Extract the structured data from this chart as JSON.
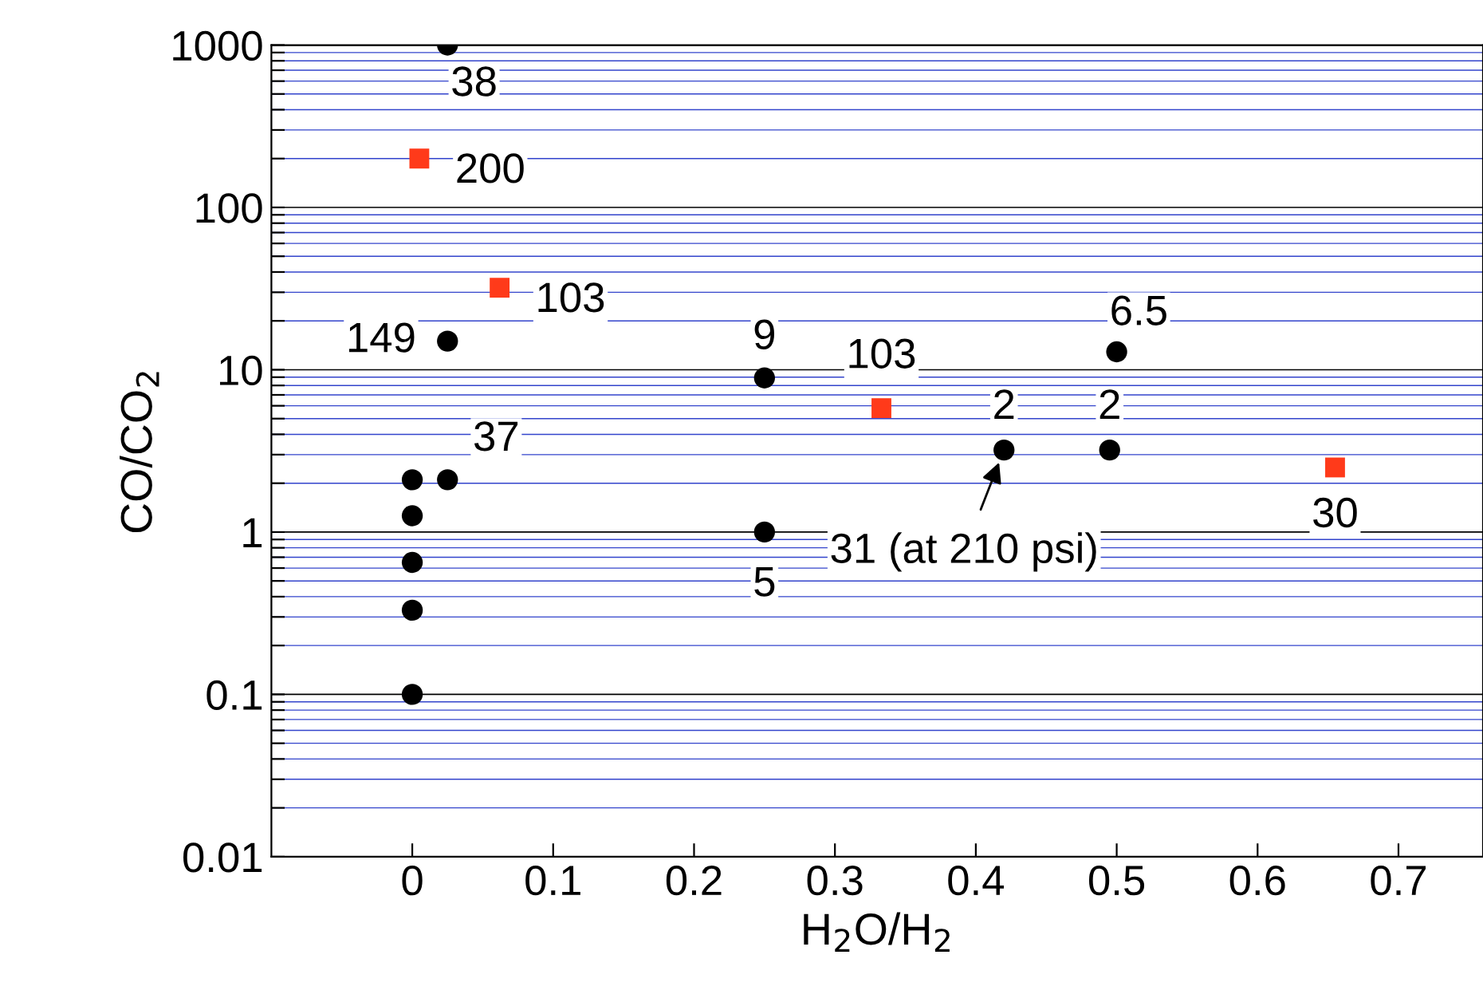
{
  "chart_data": {
    "type": "scatter",
    "xlabel": "H$_{2}$O/H$_{2}$",
    "ylabel": "CO/CO$_{2}$",
    "log": "y",
    "grid": "y",
    "xlim": [
      -0.1,
      0.76
    ],
    "xticks": [
      0,
      0.1,
      0.2,
      0.3,
      0.4,
      0.5,
      0.6,
      0.7
    ],
    "ylim": [
      0.01,
      1000
    ],
    "yticks": [
      0.01,
      {
        "value": 0.02,
        "label": null
      },
      {
        "value": 0.03,
        "label": null
      },
      {
        "value": 0.04,
        "label": null
      },
      {
        "value": 0.05,
        "label": null
      },
      {
        "value": 0.06,
        "label": null
      },
      {
        "value": 0.07,
        "label": null
      },
      {
        "value": 0.08,
        "label": null
      },
      {
        "value": 0.09,
        "label": null
      },
      0.1,
      {
        "value": 0.2,
        "label": null
      },
      {
        "value": 0.3,
        "label": null
      },
      {
        "value": 0.4,
        "label": null
      },
      {
        "value": 0.5,
        "label": null
      },
      {
        "value": 0.6,
        "label": null
      },
      {
        "value": 0.7,
        "label": null
      },
      {
        "value": 0.8,
        "label": null
      },
      {
        "value": 0.9,
        "label": null
      },
      1,
      {
        "value": 2,
        "label": null
      },
      {
        "value": 3,
        "label": null
      },
      {
        "value": 4,
        "label": null
      },
      {
        "value": 5,
        "label": null
      },
      {
        "value": 6,
        "label": null
      },
      {
        "value": 7,
        "label": null
      },
      {
        "value": 8,
        "label": null
      },
      {
        "value": 9,
        "label": null
      },
      10,
      {
        "value": 20,
        "label": null
      },
      {
        "value": 30,
        "label": null
      },
      {
        "value": 40,
        "label": null
      },
      {
        "value": 50,
        "label": null
      },
      {
        "value": 60,
        "label": null
      },
      {
        "value": 70,
        "label": null
      },
      {
        "value": 80,
        "label": null
      },
      {
        "value": 90,
        "label": null
      },
      100,
      {
        "value": 200,
        "label": null
      },
      {
        "value": 300,
        "label": null
      },
      {
        "value": 400,
        "label": null
      },
      {
        "value": 500,
        "label": null
      },
      {
        "value": 600,
        "label": null
      },
      {
        "value": 700,
        "label": null
      },
      {
        "value": 800,
        "label": null
      },
      {
        "value": 900,
        "label": null
      },
      1000
    ],
    "series": [
      {
        "color": "#000000",
        "marker": "circle",
        "x": [
          0.025,
          0.025,
          0.025,
          0,
          0,
          0,
          0,
          0,
          0.25,
          0.25,
          0.42,
          0.495,
          0.5
        ],
        "values": [
          1000,
          15,
          2.1,
          2.1,
          1.26,
          0.65,
          0.33,
          0.1,
          8.9,
          1.0,
          3.2,
          3.2,
          12.9
        ]
      },
      {
        "color": "#ff3a1a",
        "marker": "square",
        "x": [
          0.005,
          0.062,
          0.333,
          0.655
        ],
        "values": [
          200,
          32,
          5.8,
          2.5
        ]
      }
    ],
    "annotations": [
      {
        "text": "38",
        "x": 0.025,
        "y": 1000
      },
      {
        "text": "149",
        "x": 0.025,
        "y": 15
      },
      {
        "text": "37",
        "x": 0.025,
        "y": 2.1
      },
      {
        "text": "9",
        "x": 0.25,
        "y": 8.9
      },
      {
        "text": "5",
        "x": 0.25,
        "y": 1.0
      },
      {
        "text": "2",
        "x": 0.42,
        "y": 3.2
      },
      {
        "text": "2",
        "x": 0.495,
        "y": 3.2
      },
      {
        "text": "6.5",
        "x": 0.5,
        "y": 12.9
      },
      {
        "text": "200",
        "x": 0.005,
        "y": 200
      },
      {
        "text": "103",
        "x": 0.062,
        "y": 32
      },
      {
        "text": "103",
        "x": 0.333,
        "y": 5.8
      },
      {
        "text": "30",
        "x": 0.655,
        "y": 2.5
      },
      {
        "text": "31 (at 210 psi)",
        "x": 0.42,
        "y": 3.2
      }
    ]
  }
}
